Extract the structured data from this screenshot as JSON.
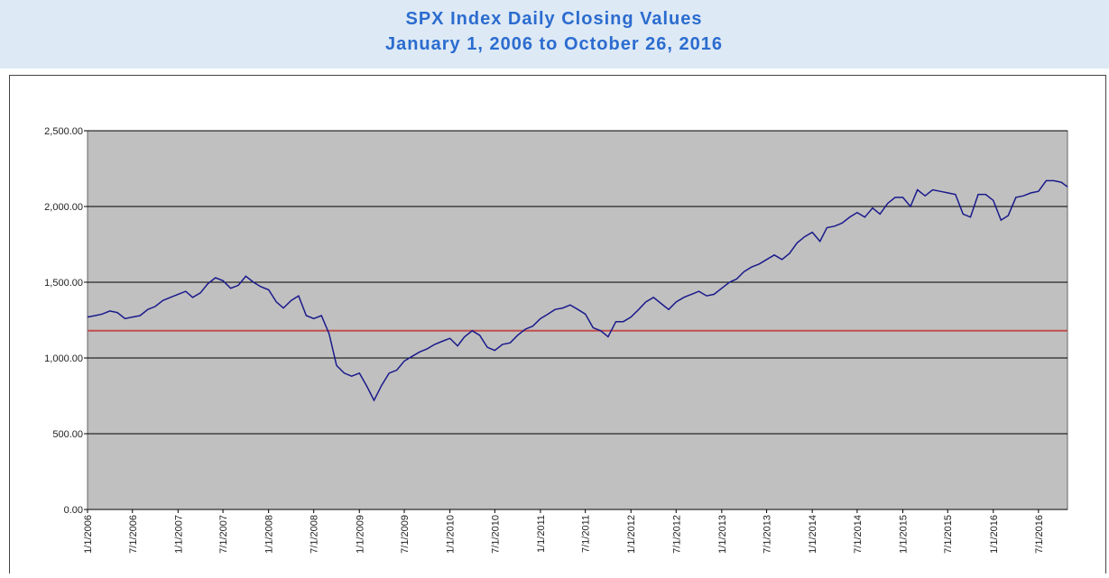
{
  "chart_data": {
    "type": "line",
    "title": "SPX Index Daily Closing Values",
    "subtitle": "January 1, 2006 to October 26, 2016",
    "x": [
      "2006-01-01",
      "2006-02-01",
      "2006-03-01",
      "2006-04-01",
      "2006-05-01",
      "2006-06-01",
      "2006-07-01",
      "2006-08-01",
      "2006-09-01",
      "2006-10-01",
      "2006-11-01",
      "2006-12-01",
      "2007-01-01",
      "2007-02-01",
      "2007-03-01",
      "2007-04-01",
      "2007-05-01",
      "2007-06-01",
      "2007-07-01",
      "2007-08-01",
      "2007-09-01",
      "2007-10-01",
      "2007-11-01",
      "2007-12-01",
      "2008-01-01",
      "2008-02-01",
      "2008-03-01",
      "2008-04-01",
      "2008-05-01",
      "2008-06-01",
      "2008-07-01",
      "2008-08-01",
      "2008-09-01",
      "2008-10-01",
      "2008-11-01",
      "2008-12-01",
      "2009-01-01",
      "2009-02-01",
      "2009-03-01",
      "2009-04-01",
      "2009-05-01",
      "2009-06-01",
      "2009-07-01",
      "2009-08-01",
      "2009-09-01",
      "2009-10-01",
      "2009-11-01",
      "2009-12-01",
      "2010-01-01",
      "2010-02-01",
      "2010-03-01",
      "2010-04-01",
      "2010-05-01",
      "2010-06-01",
      "2010-07-01",
      "2010-08-01",
      "2010-09-01",
      "2010-10-01",
      "2010-11-01",
      "2010-12-01",
      "2011-01-01",
      "2011-02-01",
      "2011-03-01",
      "2011-04-01",
      "2011-05-01",
      "2011-06-01",
      "2011-07-01",
      "2011-08-01",
      "2011-09-01",
      "2011-10-01",
      "2011-11-01",
      "2011-12-01",
      "2012-01-01",
      "2012-02-01",
      "2012-03-01",
      "2012-04-01",
      "2012-05-01",
      "2012-06-01",
      "2012-07-01",
      "2012-08-01",
      "2012-09-01",
      "2012-10-01",
      "2012-11-01",
      "2012-12-01",
      "2013-01-01",
      "2013-02-01",
      "2013-03-01",
      "2013-04-01",
      "2013-05-01",
      "2013-06-01",
      "2013-07-01",
      "2013-08-01",
      "2013-09-01",
      "2013-10-01",
      "2013-11-01",
      "2013-12-01",
      "2014-01-01",
      "2014-02-01",
      "2014-03-01",
      "2014-04-01",
      "2014-05-01",
      "2014-06-01",
      "2014-07-01",
      "2014-08-01",
      "2014-09-01",
      "2014-10-01",
      "2014-11-01",
      "2014-12-01",
      "2015-01-01",
      "2015-02-01",
      "2015-03-01",
      "2015-04-01",
      "2015-05-01",
      "2015-06-01",
      "2015-07-01",
      "2015-08-01",
      "2015-09-01",
      "2015-10-01",
      "2015-11-01",
      "2015-12-01",
      "2016-01-01",
      "2016-02-01",
      "2016-03-01",
      "2016-04-01",
      "2016-05-01",
      "2016-06-01",
      "2016-07-01",
      "2016-08-01",
      "2016-09-01",
      "2016-10-01",
      "2016-10-26"
    ],
    "series": [
      {
        "name": "SPX",
        "color": "#1a1a8c",
        "values": [
          1270,
          1280,
          1290,
          1310,
          1300,
          1260,
          1270,
          1280,
          1320,
          1340,
          1380,
          1400,
          1420,
          1440,
          1400,
          1430,
          1490,
          1530,
          1510,
          1460,
          1480,
          1540,
          1500,
          1470,
          1450,
          1370,
          1330,
          1380,
          1410,
          1280,
          1260,
          1280,
          1160,
          950,
          900,
          880,
          900,
          810,
          720,
          820,
          900,
          920,
          980,
          1010,
          1040,
          1060,
          1090,
          1110,
          1130,
          1080,
          1140,
          1180,
          1150,
          1070,
          1050,
          1090,
          1100,
          1150,
          1190,
          1210,
          1260,
          1290,
          1320,
          1330,
          1350,
          1320,
          1290,
          1200,
          1180,
          1140,
          1240,
          1240,
          1270,
          1320,
          1370,
          1400,
          1360,
          1320,
          1370,
          1400,
          1420,
          1440,
          1410,
          1420,
          1460,
          1500,
          1520,
          1570,
          1600,
          1620,
          1650,
          1680,
          1650,
          1690,
          1760,
          1800,
          1830,
          1770,
          1860,
          1870,
          1890,
          1930,
          1960,
          1930,
          1990,
          1950,
          2020,
          2060,
          2060,
          2000,
          2110,
          2070,
          2110,
          2100,
          2090,
          2080,
          1950,
          1930,
          2080,
          2080,
          2040,
          1910,
          1940,
          2060,
          2070,
          2090,
          2100,
          2170,
          2170,
          2160,
          2130
        ]
      }
    ],
    "reference_line": {
      "value": 1180,
      "color": "#c0504d"
    },
    "xlim": [
      "2006-01-01",
      "2016-10-26"
    ],
    "xticks": [
      {
        "value": "2006-01-01",
        "label": "1/1/2006"
      },
      {
        "value": "2006-07-01",
        "label": "7/1/2006"
      },
      {
        "value": "2007-01-01",
        "label": "1/1/2007"
      },
      {
        "value": "2007-07-01",
        "label": "7/1/2007"
      },
      {
        "value": "2008-01-01",
        "label": "1/1/2008"
      },
      {
        "value": "2008-07-01",
        "label": "7/1/2008"
      },
      {
        "value": "2009-01-01",
        "label": "1/1/2009"
      },
      {
        "value": "2009-07-01",
        "label": "7/1/2009"
      },
      {
        "value": "2010-01-01",
        "label": "1/1/2010"
      },
      {
        "value": "2010-07-01",
        "label": "7/1/2010"
      },
      {
        "value": "2011-01-01",
        "label": "1/1/2011"
      },
      {
        "value": "2011-07-01",
        "label": "7/1/2011"
      },
      {
        "value": "2012-01-01",
        "label": "1/1/2012"
      },
      {
        "value": "2012-07-01",
        "label": "7/1/2012"
      },
      {
        "value": "2013-01-01",
        "label": "1/1/2013"
      },
      {
        "value": "2013-07-01",
        "label": "7/1/2013"
      },
      {
        "value": "2014-01-01",
        "label": "1/1/2014"
      },
      {
        "value": "2014-07-01",
        "label": "7/1/2014"
      },
      {
        "value": "2015-01-01",
        "label": "1/1/2015"
      },
      {
        "value": "2015-07-01",
        "label": "7/1/2015"
      },
      {
        "value": "2016-01-01",
        "label": "1/1/2016"
      },
      {
        "value": "2016-07-01",
        "label": "7/1/2016"
      }
    ],
    "ylim": [
      0,
      2500
    ],
    "yticks": [
      {
        "value": 0,
        "label": "0.00"
      },
      {
        "value": 500,
        "label": "500.00"
      },
      {
        "value": 1000,
        "label": "1,000.00"
      },
      {
        "value": 1500,
        "label": "1,500.00"
      },
      {
        "value": 2000,
        "label": "2,000.00"
      },
      {
        "value": 2500,
        "label": "2,500.00"
      }
    ],
    "grid": true
  }
}
